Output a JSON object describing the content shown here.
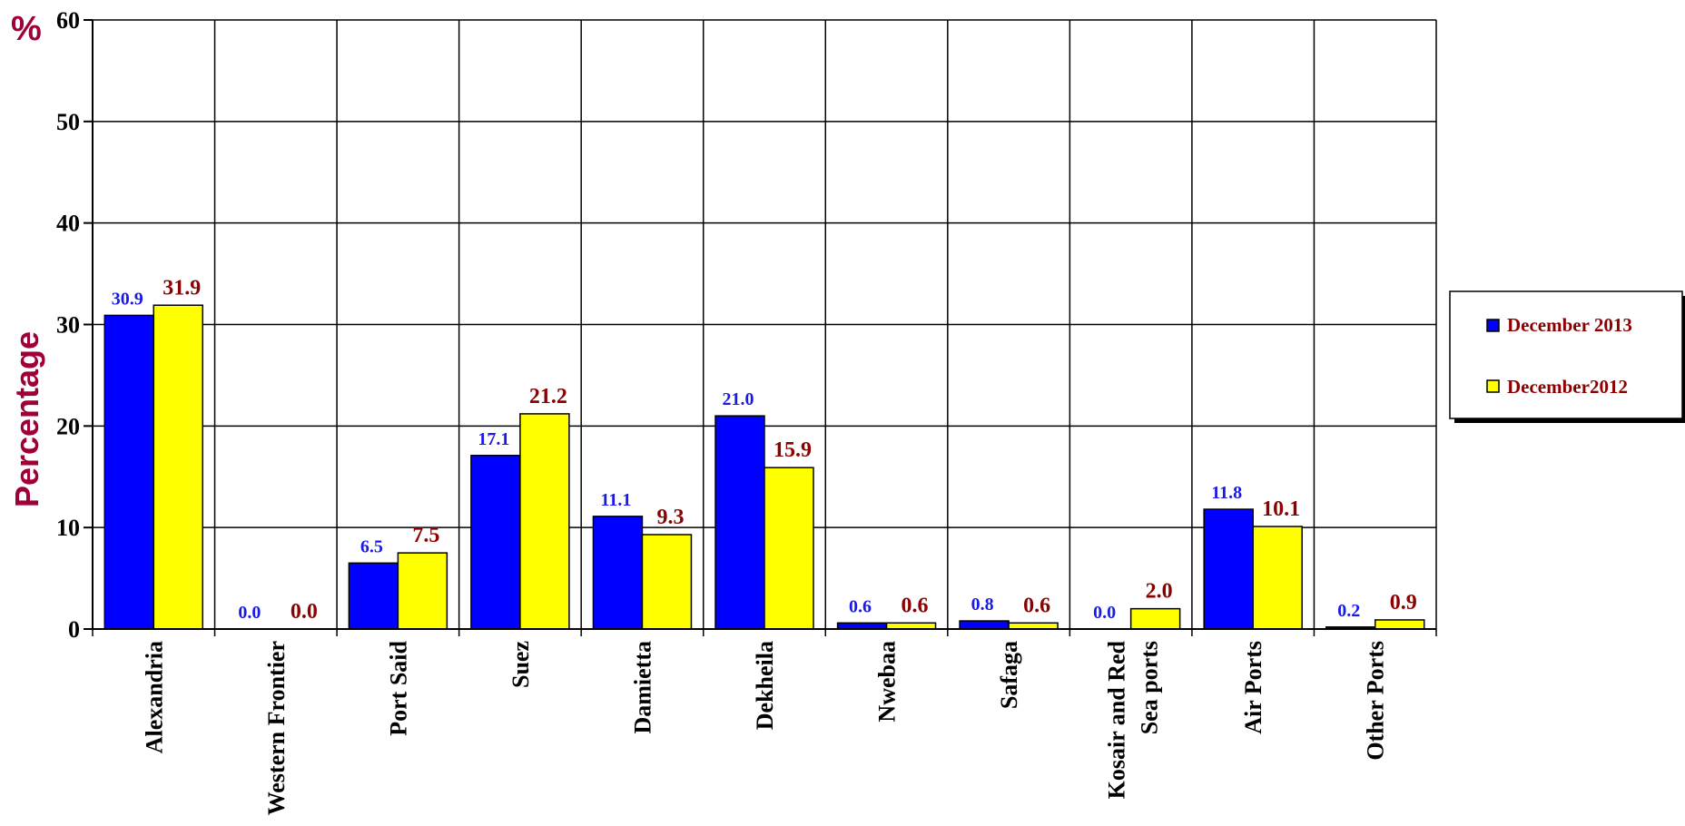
{
  "chart_data": {
    "type": "bar",
    "title": "",
    "xlabel": "",
    "ylabel": "Percentage",
    "y_unit_label": "%",
    "ylim": [
      0,
      60
    ],
    "yticks": [
      0,
      10,
      20,
      30,
      40,
      50,
      60
    ],
    "grid": true,
    "legend_position": "right",
    "categories": [
      [
        "Alexandria"
      ],
      [
        "Western Frontier"
      ],
      [
        "Port Said"
      ],
      [
        "Suez"
      ],
      [
        "Damietta"
      ],
      [
        "Dekheila"
      ],
      [
        "Nwebaa"
      ],
      [
        "Safaga"
      ],
      [
        "Kosair and Red",
        "Sea ports"
      ],
      [
        "Air Ports"
      ],
      [
        "Other Ports"
      ]
    ],
    "series": [
      {
        "name": "December 2013",
        "color": "#0000FF",
        "label_color": "#1A1AE6",
        "values": [
          30.9,
          0.0,
          6.5,
          17.1,
          11.1,
          21.0,
          0.6,
          0.8,
          0.0,
          11.8,
          0.2
        ],
        "labels": [
          "30.9",
          "0.0",
          "6.5",
          "17.1",
          "11.1",
          "21.0",
          "0.6",
          "0.8",
          "0.0",
          "11.8",
          "0.2"
        ]
      },
      {
        "name": "December2012",
        "color": "#FFFF00",
        "label_color": "#8B0000",
        "values": [
          31.9,
          0.0,
          7.5,
          21.2,
          9.3,
          15.9,
          0.6,
          0.6,
          2.0,
          10.1,
          0.9
        ],
        "labels": [
          "31.9",
          "0.0",
          "7.5",
          "21.2",
          "9.3",
          "15.9",
          "0.6",
          "0.6",
          "2.0",
          "10.1",
          "0.9"
        ]
      }
    ],
    "title_color": "#A0003A"
  }
}
